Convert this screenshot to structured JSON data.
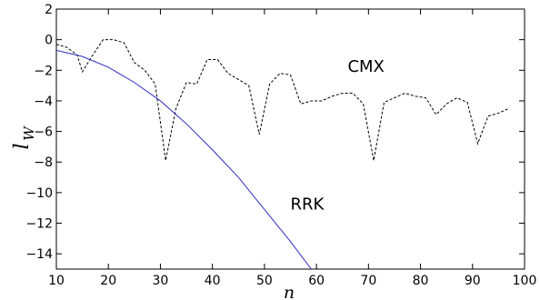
{
  "chart_data": {
    "type": "line",
    "title": "",
    "xlabel": "n",
    "ylabel_main": "l",
    "ylabel_sub": "W",
    "xlim": [
      10,
      100
    ],
    "ylim": [
      -15,
      2
    ],
    "xticks": [
      10,
      20,
      30,
      40,
      50,
      60,
      70,
      80,
      90,
      100
    ],
    "yticks": [
      2,
      0,
      -2,
      -4,
      -6,
      -8,
      -10,
      -12,
      -14
    ],
    "xtick_labels": [
      "10",
      "20",
      "30",
      "40",
      "50",
      "60",
      "70",
      "80",
      "90",
      "100"
    ],
    "ytick_labels": [
      "2",
      "0",
      "−2",
      "−4",
      "−6",
      "−8",
      "−10",
      "−12",
      "−14"
    ],
    "grid": false,
    "legend": "none",
    "annotations": [
      {
        "text": "CMX",
        "x": 66,
        "y": -1.7
      },
      {
        "text": "RRK",
        "x": 55,
        "y": -10.7
      }
    ],
    "series": [
      {
        "name": "CMX",
        "color": "#000000",
        "style": "dashed",
        "x": [
          10,
          12,
          14,
          15,
          17,
          19,
          21,
          23,
          25,
          27,
          29,
          31,
          33,
          35,
          37,
          39,
          41,
          43,
          45,
          47,
          49,
          51,
          53,
          55,
          57,
          59,
          61,
          63,
          65,
          67,
          69,
          71,
          73,
          75,
          77,
          79,
          81,
          83,
          85,
          87,
          89,
          91,
          93,
          95,
          97
        ],
        "y": [
          -0.3,
          -0.5,
          -1.0,
          -2.1,
          -1.0,
          0.0,
          0.0,
          -0.2,
          -1.5,
          -2.0,
          -2.9,
          -7.9,
          -4.5,
          -2.8,
          -2.9,
          -1.3,
          -1.3,
          -2.2,
          -2.6,
          -3.0,
          -6.2,
          -2.9,
          -2.2,
          -2.3,
          -4.2,
          -4.0,
          -4.0,
          -3.7,
          -3.5,
          -3.5,
          -4.2,
          -7.9,
          -4.1,
          -3.8,
          -3.5,
          -3.7,
          -3.8,
          -4.9,
          -4.2,
          -3.8,
          -4.1,
          -6.8,
          -5.0,
          -4.8,
          -4.5
        ]
      },
      {
        "name": "RRK",
        "color": "#2c2cbf",
        "style": "solid",
        "x": [
          10,
          15,
          20,
          25,
          30,
          35,
          40,
          45,
          50,
          55,
          59
        ],
        "y": [
          -0.7,
          -1.1,
          -1.8,
          -2.8,
          -4.0,
          -5.5,
          -7.2,
          -9.0,
          -11.1,
          -13.2,
          -15.0
        ]
      }
    ]
  }
}
